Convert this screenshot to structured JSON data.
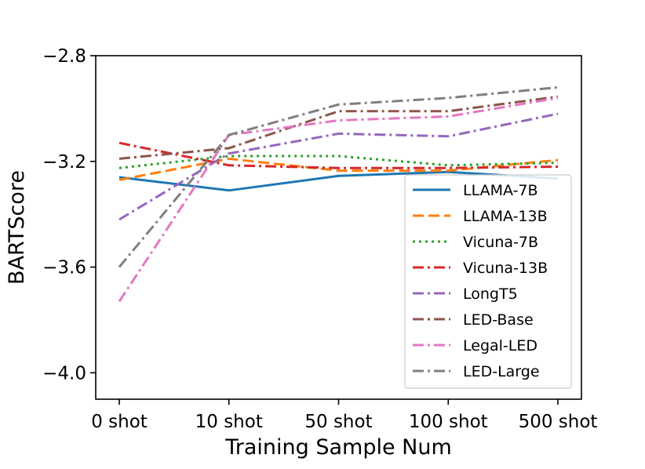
{
  "chart_data": {
    "type": "line",
    "title": "",
    "xlabel": "Training Sample Num",
    "ylabel": "BARTScore",
    "categories": [
      "0 shot",
      "10 shot",
      "50 shot",
      "100 shot",
      "500 shot"
    ],
    "ylim": [
      -4.1,
      -2.8
    ],
    "yticks": [
      -4.0,
      -3.6,
      -3.2,
      -2.8
    ],
    "ytick_labels": [
      "−4.0",
      "−3.6",
      "−3.2",
      "−2.8"
    ],
    "legend_position": "lower-right",
    "series": [
      {
        "name": "LLAMA-7B",
        "color": "#1f77b4",
        "dash": "solid",
        "values": [
          -3.26,
          -3.31,
          -3.255,
          -3.24,
          -3.265
        ]
      },
      {
        "name": "LLAMA-13B",
        "color": "#ff7f0e",
        "dash": "dashed",
        "values": [
          -3.27,
          -3.19,
          -3.235,
          -3.235,
          -3.195
        ]
      },
      {
        "name": "Vicuna-7B",
        "color": "#2ca02c",
        "dash": "dotted",
        "values": [
          -3.225,
          -3.18,
          -3.18,
          -3.215,
          -3.205
        ]
      },
      {
        "name": "Vicuna-13B",
        "color": "#d62728",
        "dash": "dashdot",
        "values": [
          -3.13,
          -3.215,
          -3.225,
          -3.225,
          -3.22
        ]
      },
      {
        "name": "LongT5",
        "color": "#9467bd",
        "dash": "dashdot",
        "values": [
          -3.42,
          -3.17,
          -3.095,
          -3.105,
          -3.02
        ]
      },
      {
        "name": "LED-Base",
        "color": "#8c564b",
        "dash": "dashdot",
        "values": [
          -3.19,
          -3.15,
          -3.01,
          -3.01,
          -2.955
        ]
      },
      {
        "name": "Legal-LED",
        "color": "#e377c2",
        "dash": "dashdot",
        "values": [
          -3.73,
          -3.1,
          -3.045,
          -3.03,
          -2.96
        ]
      },
      {
        "name": "LED-Large",
        "color": "#7f7f7f",
        "dash": "dashdot",
        "values": [
          -3.6,
          -3.1,
          -2.985,
          -2.96,
          -2.92
        ]
      }
    ]
  }
}
